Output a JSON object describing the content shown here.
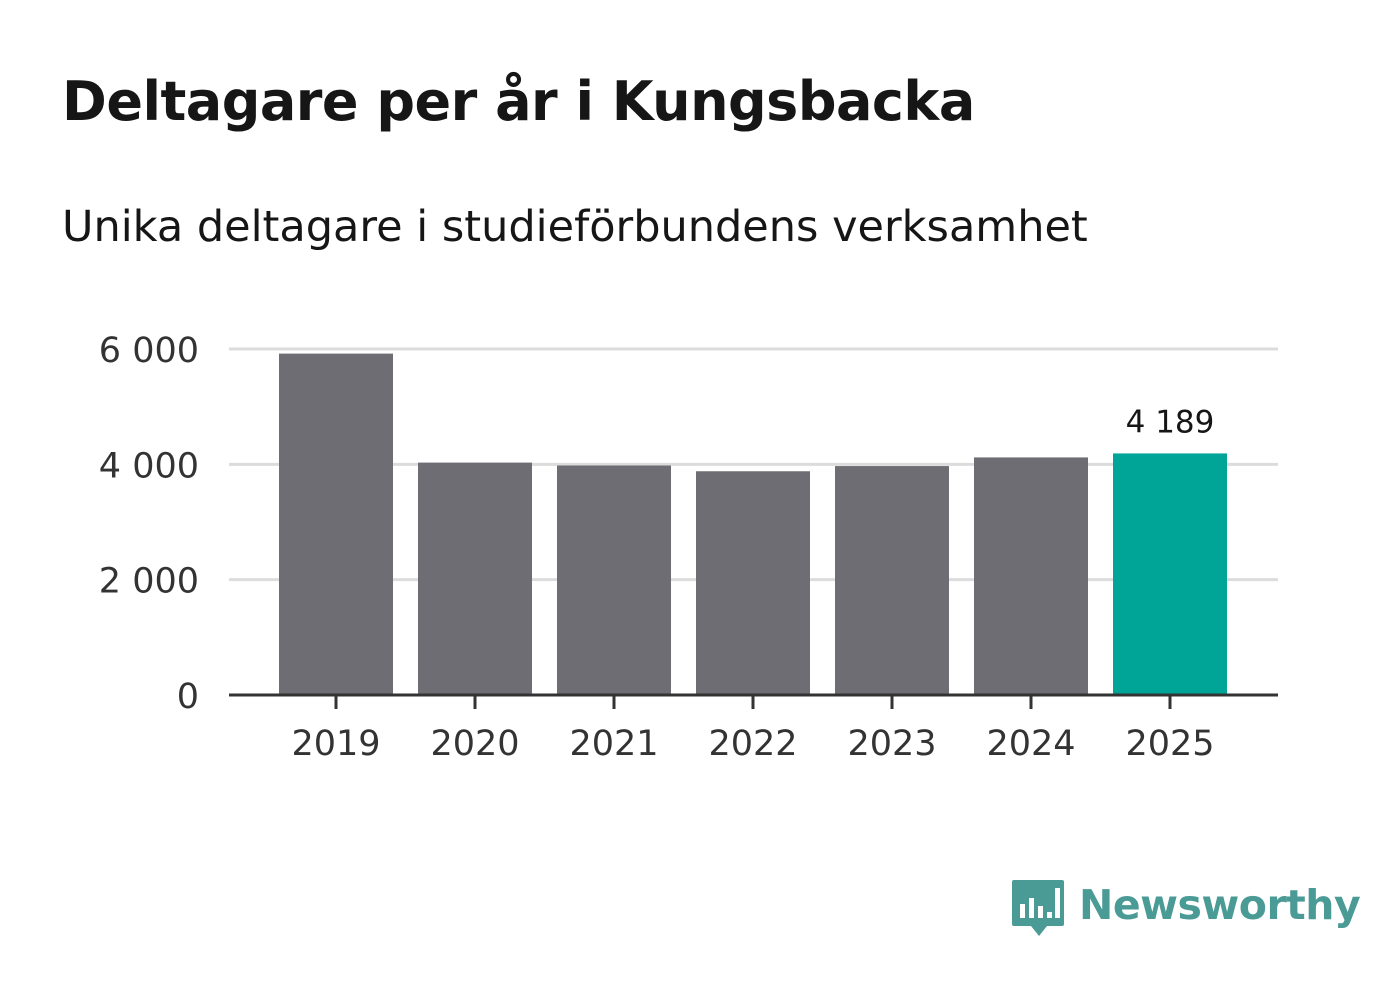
{
  "header": {
    "title": "Deltagare per år i Kungsbacka",
    "subtitle": "Unika deltagare i studieförbundens verksamhet"
  },
  "brand": {
    "name": "Newsworthy",
    "color": "#4a9a96",
    "icon": "bar-chart-bubble-icon"
  },
  "colors": {
    "bar_default": "#6e6d73",
    "bar_highlight": "#00a597",
    "grid": "#dcdcdc",
    "axis": "#333333",
    "tick_text": "#333333",
    "label_text": "#161616"
  },
  "chart_data": {
    "type": "bar",
    "title": "Deltagare per år i Kungsbacka",
    "subtitle": "Unika deltagare i studieförbundens verksamhet",
    "xlabel": "",
    "ylabel": "",
    "categories": [
      "2019",
      "2020",
      "2021",
      "2022",
      "2023",
      "2024",
      "2025"
    ],
    "values": [
      5920,
      4030,
      3980,
      3880,
      3970,
      4120,
      4189
    ],
    "ylim": [
      0,
      6000
    ],
    "yticks": [
      0,
      2000,
      4000,
      6000
    ],
    "ytick_labels": [
      "0",
      "2 000",
      "4 000",
      "6 000"
    ],
    "grid": true,
    "highlight_index": 6,
    "data_labels": [
      {
        "index": 6,
        "text": "4 189"
      }
    ]
  }
}
